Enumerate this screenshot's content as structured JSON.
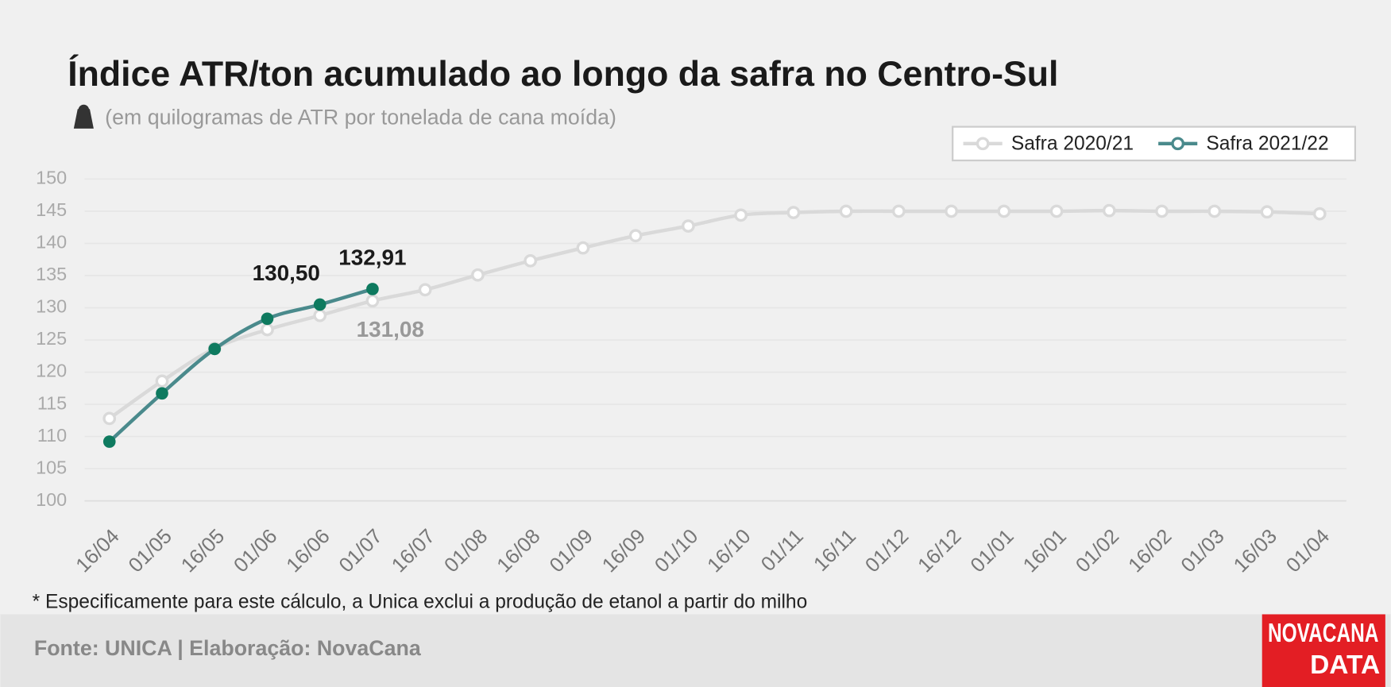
{
  "chart_data": {
    "type": "line",
    "title": "Índice ATR/ton acumulado ao longo da safra no Centro-Sul",
    "subtitle": "(em quilogramas de ATR por tonelada de cana moída)",
    "categories": [
      "16/04",
      "01/05",
      "16/05",
      "01/06",
      "16/06",
      "01/07",
      "16/07",
      "01/08",
      "16/08",
      "01/09",
      "16/09",
      "01/10",
      "16/10",
      "01/11",
      "16/11",
      "01/12",
      "16/12",
      "01/01",
      "16/01",
      "01/02",
      "16/02",
      "01/03",
      "16/03",
      "01/04"
    ],
    "series": [
      {
        "name": "Safra 2020/21",
        "color": "#d9d9d9",
        "values": [
          112.8,
          118.6,
          123.7,
          126.6,
          128.8,
          131.08,
          132.8,
          135.1,
          137.3,
          139.3,
          141.2,
          142.7,
          144.4,
          144.8,
          145.0,
          145.0,
          145.0,
          145.0,
          145.0,
          145.1,
          145.0,
          145.0,
          144.9,
          144.6
        ],
        "value_labels": [
          null,
          null,
          null,
          null,
          null,
          "131,08",
          null,
          null,
          null,
          null,
          null,
          null,
          null,
          null,
          null,
          null,
          null,
          null,
          null,
          null,
          null,
          null,
          null,
          null
        ]
      },
      {
        "name": "Safra 2021/22",
        "color": "#4a8a8c",
        "marker_color": "#0e7a5f",
        "values": [
          109.2,
          116.7,
          123.6,
          128.3,
          130.5,
          132.91,
          null,
          null,
          null,
          null,
          null,
          null,
          null,
          null,
          null,
          null,
          null,
          null,
          null,
          null,
          null,
          null,
          null,
          null
        ],
        "value_labels": [
          null,
          null,
          null,
          null,
          "130,50",
          "132,91",
          null,
          null,
          null,
          null,
          null,
          null,
          null,
          null,
          null,
          null,
          null,
          null,
          null,
          null,
          null,
          null,
          null,
          null
        ]
      }
    ],
    "ylim": [
      100,
      150
    ],
    "yticks": [
      100,
      105,
      110,
      115,
      120,
      125,
      130,
      135,
      140,
      145,
      150
    ],
    "grid": true,
    "legend": "top-right",
    "footnote": "* Especificamente para este cálculo, a Unica exclui a produção de etanol a partir do milho",
    "source": "Fonte: UNICA | Elaboração: NovaCana",
    "logo": [
      "NOVACANA",
      "DATA"
    ]
  }
}
